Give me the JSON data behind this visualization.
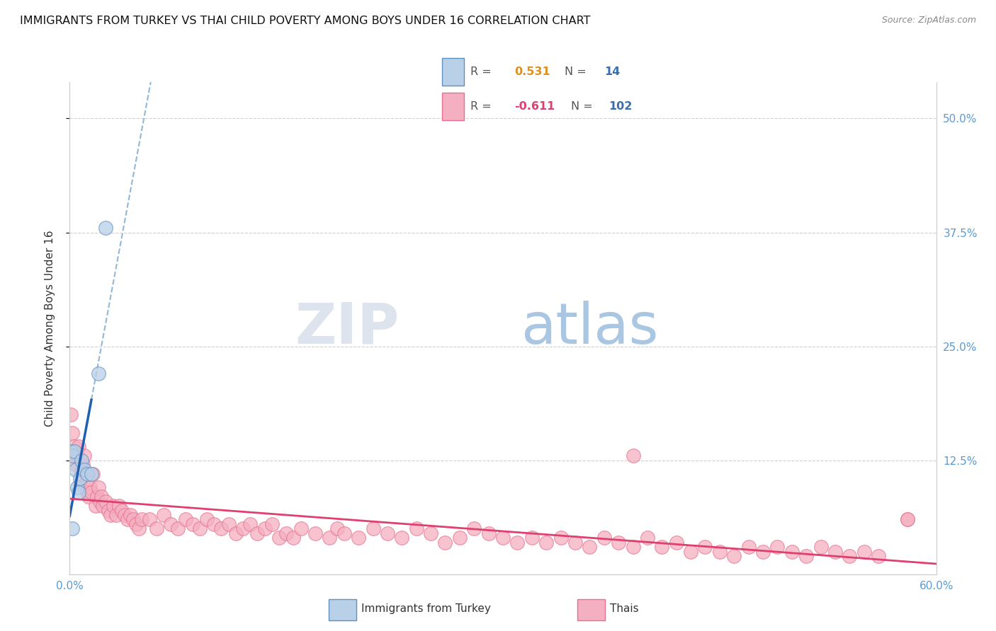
{
  "title": "IMMIGRANTS FROM TURKEY VS THAI CHILD POVERTY AMONG BOYS UNDER 16 CORRELATION CHART",
  "source": "Source: ZipAtlas.com",
  "ylabel": "Child Poverty Among Boys Under 16",
  "xlim": [
    0.0,
    0.6
  ],
  "ylim": [
    0.0,
    0.54
  ],
  "yticks": [
    0.125,
    0.25,
    0.375,
    0.5
  ],
  "ytick_labels": [
    "12.5%",
    "25.0%",
    "37.5%",
    "50.0%"
  ],
  "xtick_labels": [
    "0.0%",
    "60.0%"
  ],
  "xtick_pos": [
    0.0,
    0.6
  ],
  "turkey_R": 0.531,
  "turkey_N": 14,
  "thai_R": -0.611,
  "thai_N": 102,
  "turkey_color": "#b8d0e8",
  "thai_color": "#f4afc0",
  "turkey_edge_color": "#6090c0",
  "thai_edge_color": "#e87090",
  "turkey_line_color": "#2060b0",
  "thai_line_color": "#e04070",
  "turkey_dash_color": "#90b8d8",
  "background_color": "#ffffff",
  "grid_color": "#d0d0d0",
  "tick_color": "#5b9bd5",
  "title_fontsize": 11.5,
  "axis_label_fontsize": 11,
  "tick_fontsize": 11,
  "turkey_scatter_x": [
    0.001,
    0.002,
    0.002,
    0.003,
    0.004,
    0.005,
    0.006,
    0.007,
    0.008,
    0.01,
    0.012,
    0.015,
    0.02,
    0.025
  ],
  "turkey_scatter_y": [
    0.135,
    0.13,
    0.05,
    0.135,
    0.115,
    0.095,
    0.09,
    0.105,
    0.125,
    0.115,
    0.11,
    0.11,
    0.22,
    0.38
  ],
  "thai_scatter_x": [
    0.001,
    0.002,
    0.003,
    0.004,
    0.005,
    0.006,
    0.007,
    0.008,
    0.009,
    0.01,
    0.011,
    0.012,
    0.013,
    0.014,
    0.015,
    0.016,
    0.018,
    0.019,
    0.02,
    0.021,
    0.022,
    0.023,
    0.025,
    0.027,
    0.028,
    0.03,
    0.032,
    0.034,
    0.036,
    0.038,
    0.04,
    0.042,
    0.044,
    0.046,
    0.048,
    0.05,
    0.055,
    0.06,
    0.065,
    0.07,
    0.075,
    0.08,
    0.085,
    0.09,
    0.095,
    0.1,
    0.105,
    0.11,
    0.115,
    0.12,
    0.125,
    0.13,
    0.135,
    0.14,
    0.145,
    0.15,
    0.155,
    0.16,
    0.17,
    0.18,
    0.185,
    0.19,
    0.2,
    0.21,
    0.22,
    0.23,
    0.24,
    0.25,
    0.26,
    0.27,
    0.28,
    0.29,
    0.3,
    0.31,
    0.32,
    0.33,
    0.34,
    0.35,
    0.36,
    0.37,
    0.38,
    0.39,
    0.4,
    0.41,
    0.42,
    0.43,
    0.44,
    0.45,
    0.46,
    0.47,
    0.48,
    0.49,
    0.5,
    0.51,
    0.52,
    0.53,
    0.54,
    0.55,
    0.56,
    0.58,
    0.39,
    0.58
  ],
  "thai_scatter_y": [
    0.175,
    0.155,
    0.14,
    0.12,
    0.13,
    0.14,
    0.1,
    0.115,
    0.12,
    0.13,
    0.1,
    0.09,
    0.085,
    0.095,
    0.09,
    0.11,
    0.075,
    0.085,
    0.095,
    0.08,
    0.085,
    0.075,
    0.08,
    0.07,
    0.065,
    0.075,
    0.065,
    0.075,
    0.07,
    0.065,
    0.06,
    0.065,
    0.06,
    0.055,
    0.05,
    0.06,
    0.06,
    0.05,
    0.065,
    0.055,
    0.05,
    0.06,
    0.055,
    0.05,
    0.06,
    0.055,
    0.05,
    0.055,
    0.045,
    0.05,
    0.055,
    0.045,
    0.05,
    0.055,
    0.04,
    0.045,
    0.04,
    0.05,
    0.045,
    0.04,
    0.05,
    0.045,
    0.04,
    0.05,
    0.045,
    0.04,
    0.05,
    0.045,
    0.035,
    0.04,
    0.05,
    0.045,
    0.04,
    0.035,
    0.04,
    0.035,
    0.04,
    0.035,
    0.03,
    0.04,
    0.035,
    0.03,
    0.04,
    0.03,
    0.035,
    0.025,
    0.03,
    0.025,
    0.02,
    0.03,
    0.025,
    0.03,
    0.025,
    0.02,
    0.03,
    0.025,
    0.02,
    0.025,
    0.02,
    0.06,
    0.13,
    0.06
  ],
  "watermark_zip_color": "#dde4ee",
  "watermark_atlas_color": "#a0c0e0"
}
